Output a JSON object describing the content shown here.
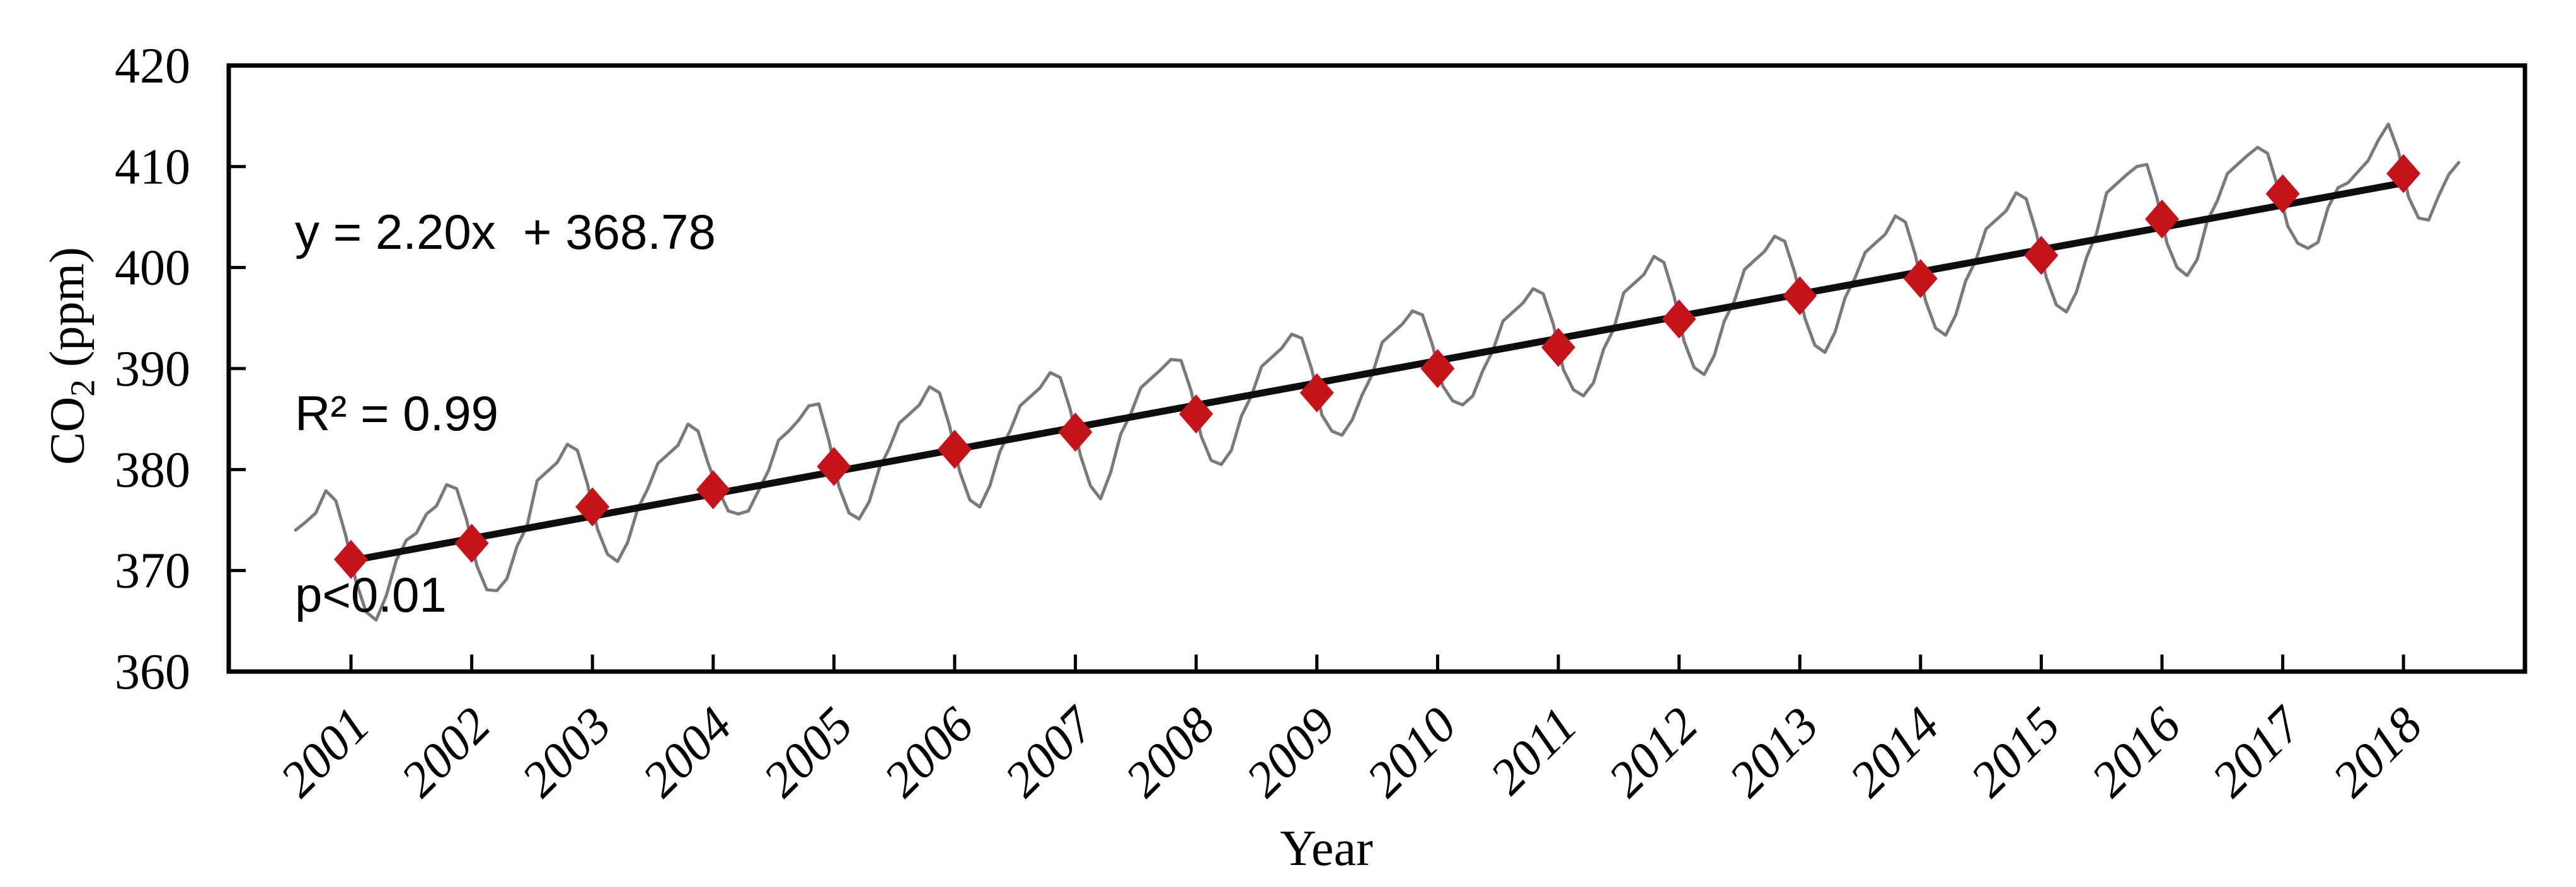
{
  "annotation": {
    "equation": "y = 2.20x  + 368.78",
    "r_squared": "R² = 0.99",
    "p_value": "p<0.01"
  },
  "y_axis": {
    "label_main": "CO",
    "label_sub": "2",
    "label_unit": " (ppm)",
    "tick_labels": [
      "360",
      "370",
      "380",
      "390",
      "400",
      "410",
      "420"
    ],
    "min": 360,
    "max": 420,
    "tick_step": 10
  },
  "x_axis": {
    "label": "Year",
    "years": [
      2001,
      2002,
      2003,
      2004,
      2005,
      2006,
      2007,
      2008,
      2009,
      2010,
      2011,
      2012,
      2013,
      2014,
      2015,
      2016,
      2017,
      2018
    ]
  },
  "chart_data": {
    "type": "line",
    "title": "",
    "xlabel": "Year",
    "ylabel": "CO2 (ppm)",
    "ylim": [
      360,
      420
    ],
    "grid": false,
    "legend": "none",
    "categories": [
      2001,
      2002,
      2003,
      2004,
      2005,
      2006,
      2007,
      2008,
      2009,
      2010,
      2011,
      2012,
      2013,
      2014,
      2015,
      2016,
      2017,
      2018
    ],
    "series": [
      {
        "name": "annual-mean-co2",
        "marker": "diamond",
        "color": "#c3141c",
        "values": [
          371.1,
          372.7,
          376.3,
          378.0,
          380.3,
          382.0,
          383.7,
          385.5,
          387.6,
          390.0,
          392.1,
          394.9,
          397.2,
          398.9,
          401.2,
          404.8,
          407.3,
          409.3
        ]
      },
      {
        "name": "monthly-co2",
        "marker": "none",
        "color": "#7a7a7a",
        "values_monthly_by_year": [
          [
            374.0,
            374.8,
            375.7,
            377.9,
            376.9,
            373.4,
            368.9,
            365.9,
            365.1,
            367.5,
            371.0,
            373.0
          ],
          [
            373.7,
            375.6,
            376.4,
            378.5,
            378.1,
            375.0,
            370.5,
            368.1,
            368.0,
            369.2,
            372.4,
            374.4
          ],
          [
            378.9,
            379.8,
            380.7,
            382.5,
            381.9,
            378.6,
            374.1,
            371.6,
            370.9,
            372.8,
            376.1,
            378.1
          ],
          [
            380.6,
            381.5,
            382.4,
            384.5,
            383.8,
            380.6,
            378.0,
            375.9,
            375.6,
            375.9,
            377.9,
            379.9
          ],
          [
            382.9,
            383.8,
            384.9,
            386.3,
            386.5,
            382.9,
            378.3,
            375.7,
            375.1,
            376.8,
            380.1,
            382.1
          ],
          [
            384.6,
            385.5,
            386.4,
            388.2,
            387.6,
            384.3,
            379.8,
            377.0,
            376.3,
            378.4,
            381.8,
            383.8
          ],
          [
            386.3,
            387.2,
            388.1,
            389.6,
            389.1,
            385.9,
            381.4,
            378.4,
            377.1,
            379.7,
            383.5,
            385.5
          ],
          [
            388.1,
            389.0,
            389.9,
            390.9,
            390.8,
            387.8,
            383.3,
            380.9,
            380.5,
            381.9,
            385.3,
            387.3
          ],
          [
            390.2,
            391.1,
            392.0,
            393.4,
            393.0,
            389.9,
            385.4,
            383.8,
            383.4,
            384.9,
            387.4,
            389.4
          ],
          [
            392.6,
            393.5,
            394.4,
            395.7,
            395.3,
            392.3,
            388.3,
            386.8,
            386.4,
            387.3,
            389.8,
            391.8
          ],
          [
            394.7,
            395.6,
            396.5,
            397.9,
            397.4,
            394.4,
            389.9,
            387.9,
            387.3,
            388.6,
            391.9,
            393.9
          ],
          [
            397.5,
            398.4,
            399.3,
            401.1,
            400.5,
            397.2,
            392.7,
            390.1,
            389.4,
            391.3,
            394.7,
            396.7
          ],
          [
            399.8,
            400.7,
            401.6,
            403.1,
            402.6,
            399.5,
            395.0,
            392.3,
            391.6,
            393.6,
            397.0,
            399.0
          ],
          [
            401.5,
            402.4,
            403.3,
            405.1,
            404.5,
            401.2,
            396.7,
            394.0,
            393.3,
            395.3,
            398.7,
            400.7
          ],
          [
            403.8,
            404.7,
            405.6,
            407.4,
            406.8,
            403.5,
            399.0,
            396.3,
            395.6,
            397.6,
            401.0,
            403.4
          ],
          [
            407.4,
            408.3,
            409.2,
            410.0,
            410.2,
            406.9,
            402.4,
            400.0,
            399.2,
            400.8,
            404.6,
            406.6
          ],
          [
            409.3,
            410.2,
            411.1,
            411.9,
            411.3,
            408.0,
            404.1,
            402.4,
            401.9,
            402.5,
            405.9,
            407.9
          ],
          [
            408.4,
            409.5,
            410.6,
            412.6,
            414.2,
            411.5,
            407.0,
            404.9,
            404.7,
            407.1,
            409.2,
            410.4
          ]
        ]
      },
      {
        "name": "linear-trend",
        "marker": "none",
        "color": "#0d0d0d",
        "trend": {
          "slope": 2.2,
          "intercept": 368.78,
          "r2": 0.99,
          "p": "p<0.01",
          "x_is_year_index": true,
          "fitted_endpoints": [
            370.98,
            408.38
          ]
        }
      }
    ],
    "colors": {
      "annual": "#c3141c",
      "monthly": "#7a7a7a",
      "trend": "#0d0d0d",
      "axis": "#000000"
    }
  }
}
